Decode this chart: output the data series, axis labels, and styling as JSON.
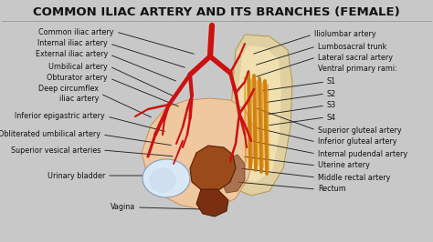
{
  "title": "COMMON ILIAC ARTERY AND ITS BRANCHES (FEMALE)",
  "background_color": "#c8c8c8",
  "title_color": "#111111",
  "title_fontsize": 9.5,
  "label_fontsize": 5.8,
  "left_labels": [
    [
      "Common iliac artery",
      125,
      35,
      215,
      60
    ],
    [
      "Internal iliac artery",
      118,
      48,
      205,
      75
    ],
    [
      "External iliac artery",
      118,
      60,
      195,
      90
    ],
    [
      "Umbilical artery",
      118,
      73,
      195,
      108
    ],
    [
      "Obturator artery",
      118,
      86,
      198,
      118
    ],
    [
      "Deep circumflex\niliac artery",
      108,
      103,
      168,
      130
    ],
    [
      "Inferior epigastric artery",
      115,
      128,
      183,
      145
    ],
    [
      "Obliterated umbilical artery",
      110,
      148,
      190,
      160
    ],
    [
      "Superior vesical arteries",
      110,
      165,
      192,
      172
    ],
    [
      "Urinary bladder",
      115,
      193,
      178,
      193
    ],
    [
      "Vagina",
      148,
      228,
      222,
      230
    ]
  ],
  "right_labels": [
    [
      "Iliolumbar artery",
      344,
      38,
      275,
      60
    ],
    [
      "Lumbosacral trunk",
      348,
      51,
      278,
      72
    ],
    [
      "Lateral sacral artery",
      348,
      63,
      278,
      85
    ],
    [
      "Ventral primary rami:",
      348,
      76,
      null,
      null
    ],
    [
      "S1",
      358,
      90,
      285,
      100
    ],
    [
      "S2",
      358,
      103,
      288,
      113
    ],
    [
      "S3",
      358,
      116,
      290,
      126
    ],
    [
      "S4",
      358,
      129,
      292,
      138
    ],
    [
      "Superior gluteal artery",
      348,
      143,
      278,
      118
    ],
    [
      "Inferior gluteal artery",
      348,
      156,
      278,
      140
    ],
    [
      "Internal pudendal artery",
      348,
      169,
      275,
      155
    ],
    [
      "Uterine artery",
      348,
      182,
      265,
      172
    ],
    [
      "Middle rectal artery",
      348,
      195,
      262,
      185
    ],
    [
      "Rectum",
      348,
      208,
      258,
      200
    ]
  ]
}
